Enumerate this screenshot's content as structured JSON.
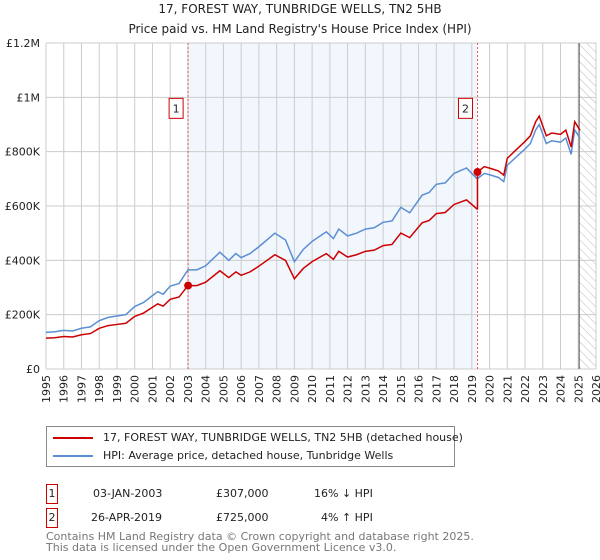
{
  "chart_data": {
    "type": "line",
    "title": "17, FOREST WAY, TUNBRIDGE WELLS, TN2 5HB",
    "subtitle": "Price paid vs. HM Land Registry's House Price Index (HPI)",
    "xlim": [
      1995,
      2026
    ],
    "ylim": [
      0,
      1200000
    ],
    "x_ticks": [
      "1995",
      "1996",
      "1997",
      "1998",
      "1999",
      "2000",
      "2001",
      "2002",
      "2003",
      "2004",
      "2005",
      "2006",
      "2007",
      "2008",
      "2009",
      "2010",
      "2011",
      "2012",
      "2013",
      "2014",
      "2015",
      "2016",
      "2017",
      "2018",
      "2019",
      "2020",
      "2021",
      "2022",
      "2023",
      "2024",
      "2025",
      "2026"
    ],
    "y_ticks": [
      {
        "v": 0,
        "l": "£0"
      },
      {
        "v": 200000,
        "l": "£200K"
      },
      {
        "v": 400000,
        "l": "£400K"
      },
      {
        "v": 600000,
        "l": "£600K"
      },
      {
        "v": 800000,
        "l": "£800K"
      },
      {
        "v": 1000000,
        "l": "£1M"
      },
      {
        "v": 1200000,
        "l": "£1.2M"
      }
    ],
    "grid": true,
    "shaded_range": [
      2003.01,
      2019.32
    ],
    "forecast_from": 2025.05,
    "hpi": {
      "name": "HPI: Average price, detached house, Tunbridge Wells",
      "color": "#5b8fd4",
      "x": [
        1995,
        1995.5,
        1996,
        1996.5,
        1997,
        1997.5,
        1998,
        1998.5,
        1999,
        1999.5,
        2000,
        2000.5,
        2001,
        2001.3,
        2001.6,
        2002,
        2002.5,
        2003,
        2003.5,
        2004,
        2004.8,
        2005.3,
        2005.7,
        2006,
        2006.5,
        2007,
        2007.9,
        2008.5,
        2009,
        2009.5,
        2010,
        2010.8,
        2011.2,
        2011.5,
        2012,
        2012.5,
        2013,
        2013.5,
        2014,
        2014.5,
        2015,
        2015.5,
        2016.2,
        2016.6,
        2017,
        2017.5,
        2018,
        2018.7,
        2019.3,
        2019.7,
        2020,
        2020.5,
        2020.8,
        2021,
        2021.5,
        2022,
        2022.3,
        2022.6,
        2022.8,
        2023.2,
        2023.5,
        2024,
        2024.3,
        2024.6,
        2024.8,
        2025.1
      ],
      "y": [
        135000,
        137000,
        142000,
        140000,
        150000,
        155000,
        178000,
        190000,
        195000,
        200000,
        230000,
        245000,
        270000,
        285000,
        275000,
        305000,
        315000,
        365000,
        365000,
        380000,
        430000,
        400000,
        425000,
        410000,
        425000,
        450000,
        500000,
        475000,
        395000,
        440000,
        470000,
        505000,
        480000,
        515000,
        490000,
        500000,
        515000,
        520000,
        540000,
        545000,
        595000,
        575000,
        640000,
        650000,
        680000,
        685000,
        720000,
        740000,
        700000,
        720000,
        715000,
        705000,
        690000,
        750000,
        780000,
        810000,
        830000,
        880000,
        900000,
        830000,
        840000,
        835000,
        850000,
        790000,
        880000,
        850000
      ]
    },
    "property": {
      "name": "17, FOREST WAY, TUNBRIDGE WELLS, TN2 5HB (detached house)",
      "color": "#cc0000"
    },
    "sales": [
      {
        "id": "1",
        "x": 2003.01,
        "date": "03-JAN-2003",
        "price": 307000,
        "price_label": "£307,000",
        "hpi_label": "16% ↓ HPI"
      },
      {
        "id": "2",
        "x": 2019.32,
        "date": "26-APR-2019",
        "price": 725000,
        "price_label": "£725,000",
        "hpi_label": "4% ↑ HPI"
      }
    ]
  },
  "footer": {
    "line1": "Contains HM Land Registry data © Crown copyright and database right 2025.",
    "line2": "This data is licensed under the Open Government Licence v3.0."
  }
}
